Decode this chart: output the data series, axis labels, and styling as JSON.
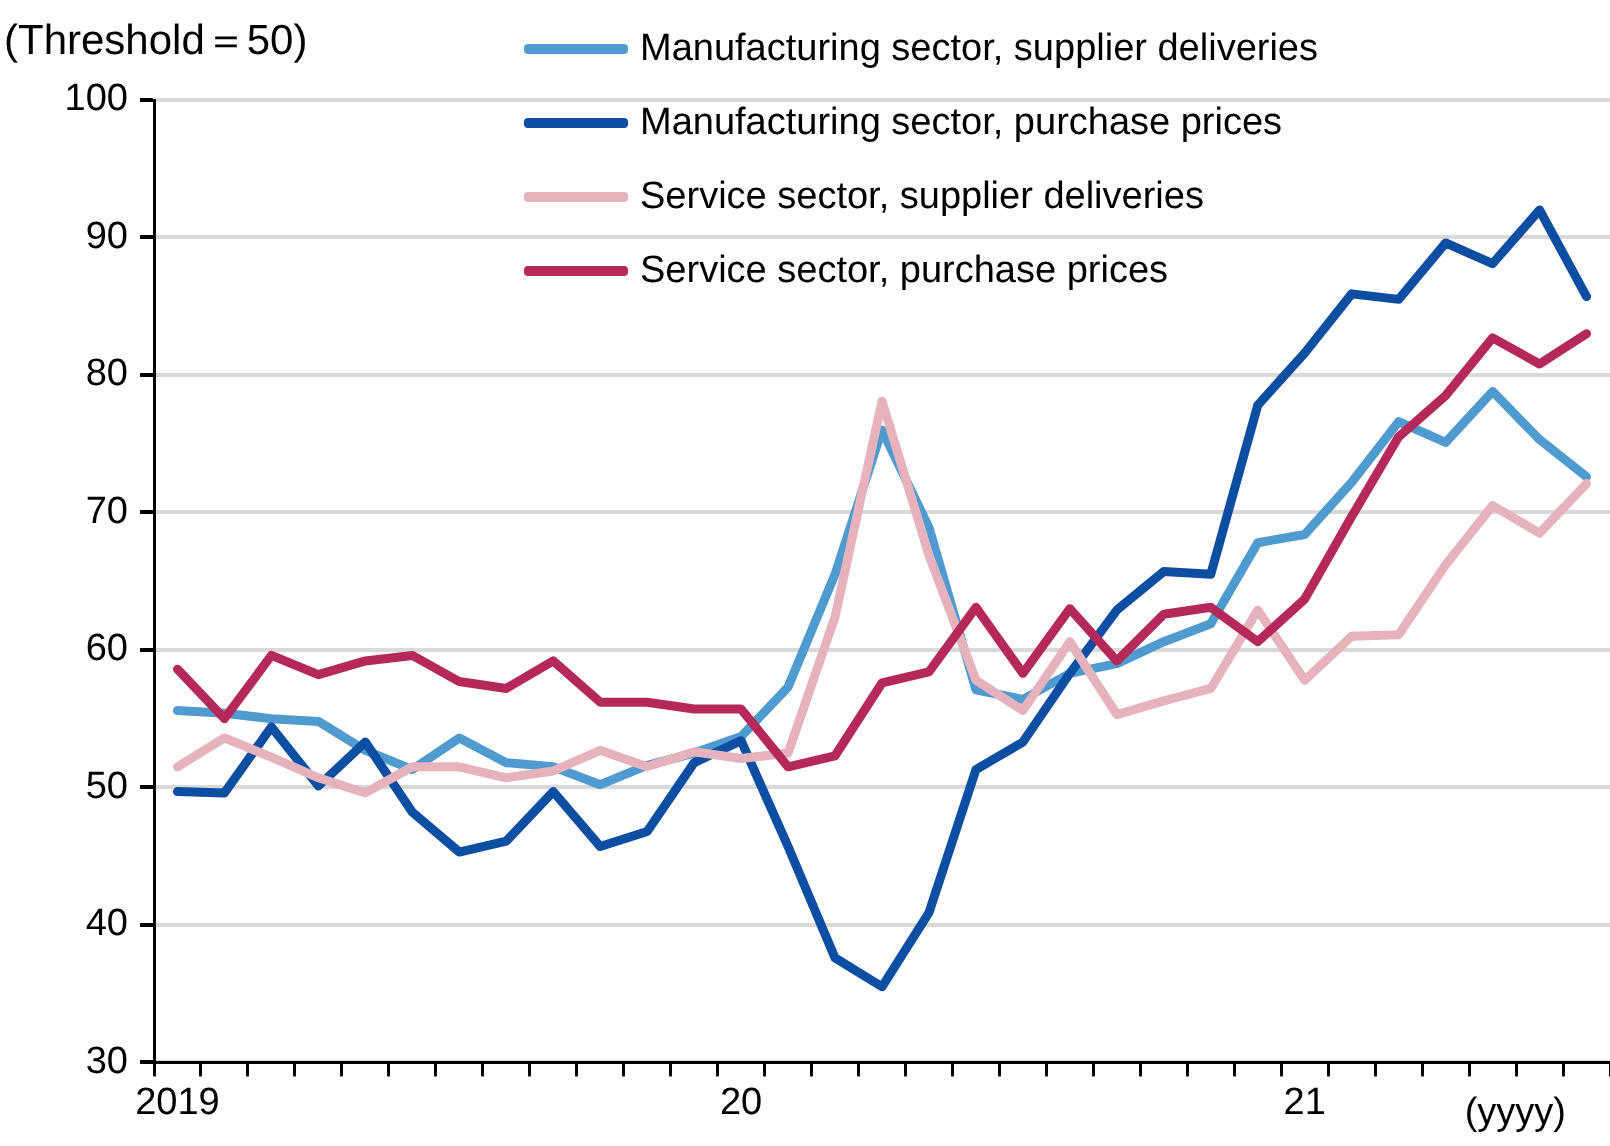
{
  "chart_data": {
    "type": "line",
    "ylabel": "(Threshold＝50)",
    "categories": [
      "2019",
      null,
      null,
      null,
      null,
      null,
      null,
      null,
      null,
      null,
      null,
      null,
      "20",
      null,
      null,
      null,
      null,
      null,
      null,
      null,
      null,
      null,
      null,
      null,
      "21",
      null,
      null,
      null,
      null,
      null,
      null
    ],
    "series": [
      {
        "name": "Manufacturing sector, supplier deliveries",
        "color": "#4f9bd0",
        "values": [
          55.6,
          55.4,
          55.0,
          54.8,
          52.7,
          51.3,
          53.6,
          51.8,
          51.5,
          50.2,
          51.6,
          52.5,
          53.7,
          57.3,
          65.5,
          76.0,
          68.9,
          57.1,
          56.4,
          58.3,
          59.0,
          60.6,
          61.9,
          67.8,
          68.4,
          72.2,
          76.6,
          75.1,
          78.8,
          75.3,
          72.6
        ]
      },
      {
        "name": "Manufacturing sector, purchase prices",
        "color": "#0b4ea2",
        "values": [
          49.7,
          49.6,
          54.4,
          50.1,
          53.3,
          48.2,
          45.3,
          46.1,
          49.7,
          45.7,
          46.8,
          51.8,
          53.4,
          45.7,
          37.6,
          35.5,
          40.9,
          51.3,
          53.3,
          58.3,
          62.9,
          65.7,
          65.5,
          77.8,
          81.6,
          85.9,
          85.5,
          89.6,
          88.1,
          92.0,
          85.7
        ]
      },
      {
        "name": "Service sector, supplier deliveries",
        "color": "#e6b3bc",
        "values": [
          51.5,
          53.6,
          52.2,
          50.7,
          49.6,
          51.5,
          51.5,
          50.7,
          51.2,
          52.7,
          51.5,
          52.6,
          52.1,
          52.5,
          62.4,
          78.1,
          66.9,
          57.8,
          55.6,
          60.6,
          55.3,
          56.3,
          57.2,
          62.9,
          57.8,
          61.0,
          61.1,
          66.2,
          70.5,
          68.5,
          72.1
        ]
      },
      {
        "name": "Service sector, purchase prices",
        "color": "#b5285a",
        "values": [
          58.6,
          55.0,
          59.6,
          58.2,
          59.2,
          59.6,
          57.7,
          57.2,
          59.2,
          56.2,
          56.2,
          55.7,
          55.7,
          51.5,
          52.3,
          57.6,
          58.4,
          63.1,
          58.3,
          63.0,
          59.2,
          62.6,
          63.1,
          60.6,
          63.7,
          69.7,
          75.5,
          78.5,
          82.7,
          80.8,
          83.0
        ]
      }
    ],
    "ylim": [
      30,
      100
    ],
    "yticks": [
      30,
      40,
      50,
      60,
      70,
      80,
      90,
      100
    ],
    "grid": "y",
    "legend": "top",
    "marker": "none",
    "line_style": "solid",
    "annotations": [
      "(yyyy)"
    ]
  }
}
